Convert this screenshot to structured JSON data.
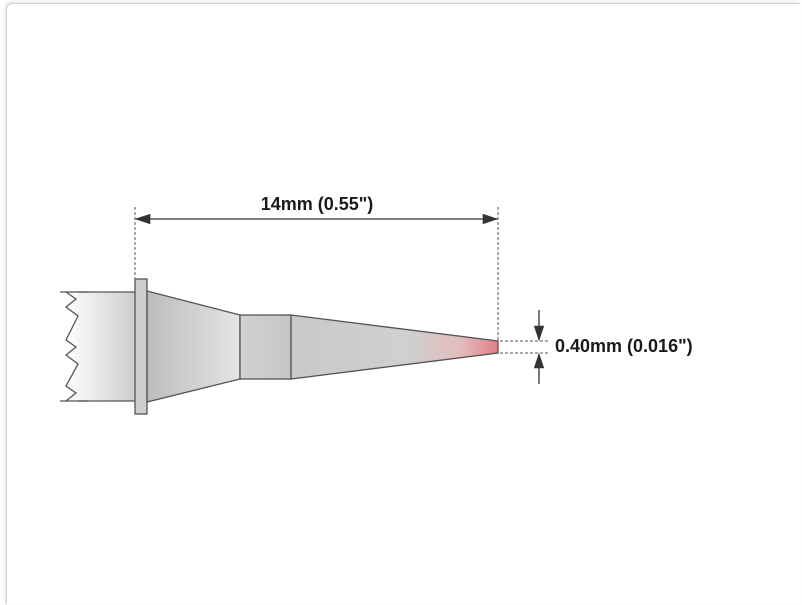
{
  "diagram": {
    "length_dimension": "14mm (0.55\")",
    "tip_dimension": "0.40mm (0.016\")"
  },
  "colors": {
    "outline": "#555555",
    "body_gray": "#c8c8c8",
    "tip_highlight": "#d98a8a",
    "dimension_line": "#333333"
  }
}
